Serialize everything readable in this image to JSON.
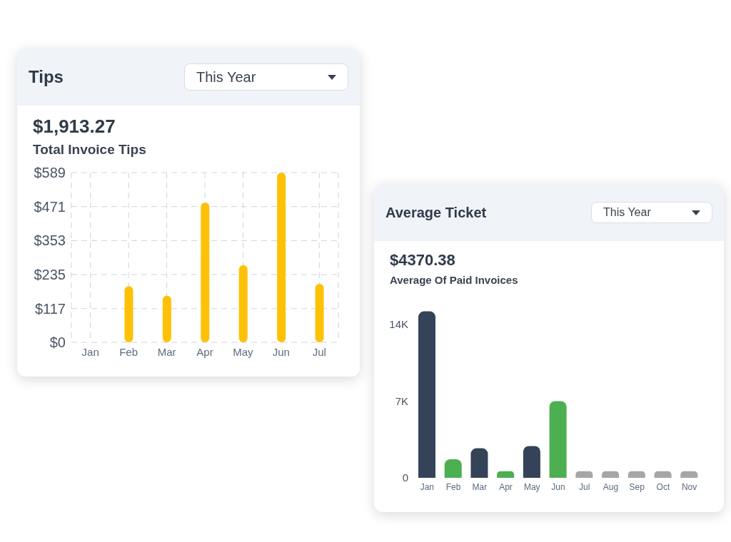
{
  "chart_data": [
    {
      "type": "bar",
      "title": "Tips",
      "annotations": [
        "This Year",
        "$1,913.27",
        "Total Invoice Tips"
      ],
      "categories": [
        "Jan",
        "Feb",
        "Mar",
        "Apr",
        "May",
        "Jun",
        "Jul"
      ],
      "values": [
        0,
        195,
        162,
        485,
        268,
        589,
        203
      ],
      "color": "#ffc107",
      "ylim": [
        0,
        589
      ],
      "yticks": [
        {
          "value": 0,
          "label": "$0"
        },
        {
          "value": 117,
          "label": "$117"
        },
        {
          "value": 235,
          "label": "$235"
        },
        {
          "value": 353,
          "label": "$353"
        },
        {
          "value": 471,
          "label": "$471"
        },
        {
          "value": 589,
          "label": "$589"
        }
      ],
      "grid": true
    },
    {
      "type": "bar",
      "title": "Average Ticket",
      "annotations": [
        "This Year",
        "$4370.38",
        "Average Of Paid Invoices"
      ],
      "categories": [
        "Jan",
        "Feb",
        "Mar",
        "Apr",
        "May",
        "Jun",
        "Jul",
        "Aug",
        "Sep",
        "Oct",
        "Nov"
      ],
      "values": [
        15200,
        1700,
        2700,
        600,
        2900,
        7000,
        600,
        600,
        600,
        600,
        600
      ],
      "colors": [
        "#344357",
        "#4caf50",
        "#344357",
        "#4caf50",
        "#344357",
        "#4caf50",
        "#a6a6a6",
        "#a6a6a6",
        "#a6a6a6",
        "#a6a6a6",
        "#a6a6a6"
      ],
      "ylim": [
        0,
        15500
      ],
      "yticks": [
        0,
        {
          "value": 7000,
          "label": "7K"
        },
        {
          "value": 14000,
          "label": "14K"
        }
      ]
    }
  ]
}
